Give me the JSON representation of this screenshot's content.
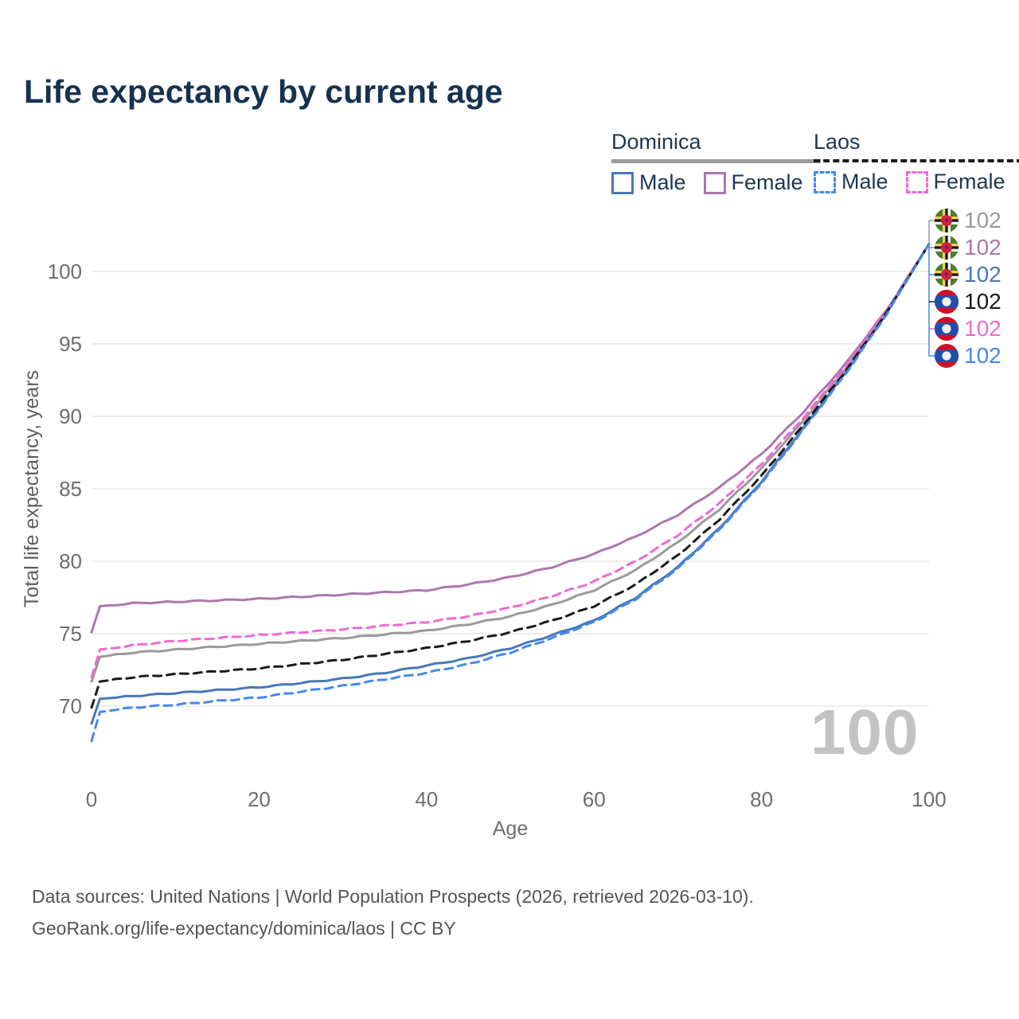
{
  "title": "Life expectancy by current age",
  "legend": {
    "groups": [
      {
        "name": "Dominica",
        "line_style": "solid",
        "underline_color": "#9a9a9a",
        "items": [
          {
            "label": "Male",
            "color": "#4878b8",
            "dashed": false
          },
          {
            "label": "Female",
            "color": "#ad77ad",
            "dashed": false
          }
        ]
      },
      {
        "name": "Laos",
        "line_style": "dashed",
        "underline_color": "#1a1a1a",
        "items": [
          {
            "label": "Male",
            "color": "#4489ec",
            "dashed": true
          },
          {
            "label": "Female",
            "color": "#ee6ad4",
            "dashed": true
          }
        ]
      }
    ]
  },
  "end_labels": {
    "rows": [
      {
        "flag": "dominica",
        "series": "Dominica",
        "value": "102",
        "color": "#9a9a9a"
      },
      {
        "flag": "dominica",
        "series": "Dominica Female",
        "value": "102",
        "color": "#ad77ad"
      },
      {
        "flag": "dominica",
        "series": "Dominica Male",
        "value": "102",
        "color": "#4878b8"
      },
      {
        "flag": "laos",
        "series": "Laos",
        "value": "102",
        "color": "#1a1a1a"
      },
      {
        "flag": "laos",
        "series": "Laos Female",
        "value": "102",
        "color": "#ee6ad4"
      },
      {
        "flag": "laos",
        "series": "Laos Male",
        "value": "102",
        "color": "#4489ec"
      }
    ]
  },
  "watermark": "100",
  "footer": {
    "line1": "Data sources: United Nations | World Population Prospects (2026, retrieved 2026-03-10).",
    "line2": "GeoRank.org/life-expectancy/dominica/laos | CC BY"
  },
  "chart_data": {
    "type": "line",
    "title": "Life expectancy by current age",
    "xlabel": "Age",
    "ylabel": "Total life expectancy, years",
    "x_ticks": [
      0,
      20,
      40,
      60,
      80,
      100
    ],
    "y_ticks": [
      70,
      75,
      80,
      85,
      90,
      95,
      100
    ],
    "xlim": [
      0,
      100
    ],
    "ylim": [
      66.5,
      103
    ],
    "grid": "horizontal",
    "legend_position": "top-right",
    "x": [
      0,
      1,
      5,
      10,
      15,
      20,
      25,
      30,
      35,
      40,
      45,
      50,
      55,
      60,
      65,
      70,
      75,
      80,
      85,
      90,
      95,
      100
    ],
    "series": [
      {
        "name": "Dominica",
        "country": "Dominica",
        "sex": "both",
        "color": "#9a9a9a",
        "dash": false,
        "end_label": "102",
        "values": [
          71.7,
          73.4,
          73.7,
          73.9,
          74.1,
          74.3,
          74.5,
          74.7,
          74.95,
          75.2,
          75.65,
          76.2,
          77.0,
          78.0,
          79.4,
          81.3,
          83.6,
          86.4,
          89.7,
          93.3,
          97.3,
          101.9
        ]
      },
      {
        "name": "Dominica Female",
        "country": "Dominica",
        "sex": "female",
        "color": "#ad77ad",
        "dash": false,
        "end_label": "102",
        "values": [
          75.1,
          76.9,
          77.1,
          77.2,
          77.3,
          77.4,
          77.55,
          77.7,
          77.85,
          78.0,
          78.4,
          78.9,
          79.6,
          80.5,
          81.7,
          83.2,
          85.1,
          87.4,
          90.3,
          93.6,
          97.4,
          101.9
        ]
      },
      {
        "name": "Dominica Male",
        "country": "Dominica",
        "sex": "male",
        "color": "#4878b8",
        "dash": false,
        "end_label": "102",
        "values": [
          68.8,
          70.5,
          70.7,
          70.9,
          71.1,
          71.3,
          71.6,
          71.9,
          72.3,
          72.8,
          73.3,
          74.0,
          74.9,
          75.9,
          77.5,
          79.6,
          82.3,
          85.5,
          89.2,
          93.0,
          97.2,
          101.9
        ]
      },
      {
        "name": "Laos",
        "country": "Laos",
        "sex": "both",
        "color": "#1a1a1a",
        "dash": true,
        "end_label": "102",
        "values": [
          69.9,
          71.7,
          72.0,
          72.2,
          72.4,
          72.6,
          72.9,
          73.2,
          73.6,
          74.0,
          74.5,
          75.1,
          75.9,
          76.9,
          78.4,
          80.4,
          82.9,
          85.9,
          89.4,
          93.1,
          97.2,
          101.9
        ]
      },
      {
        "name": "Laos Female",
        "country": "Laos",
        "sex": "female",
        "color": "#ee6ad4",
        "dash": true,
        "end_label": "102",
        "values": [
          72.0,
          73.9,
          74.2,
          74.5,
          74.7,
          74.9,
          75.1,
          75.3,
          75.55,
          75.8,
          76.2,
          76.8,
          77.6,
          78.6,
          80.0,
          81.8,
          84.0,
          86.7,
          89.9,
          93.4,
          97.3,
          101.9
        ]
      },
      {
        "name": "Laos Male",
        "country": "Laos",
        "sex": "male",
        "color": "#4489ec",
        "dash": true,
        "end_label": "102",
        "values": [
          67.6,
          69.6,
          69.9,
          70.1,
          70.35,
          70.6,
          71.0,
          71.4,
          71.85,
          72.3,
          72.9,
          73.7,
          74.7,
          75.8,
          77.4,
          79.5,
          82.2,
          85.4,
          89.1,
          92.9,
          97.1,
          101.9
        ]
      }
    ]
  }
}
